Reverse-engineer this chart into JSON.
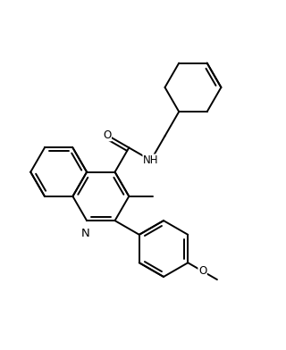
{
  "bg_color": "#ffffff",
  "line_color": "#000000",
  "line_width": 1.4,
  "font_size": 8.5,
  "figsize": [
    3.2,
    3.92
  ],
  "dpi": 100,
  "xlim": [
    0,
    10
  ],
  "ylim": [
    0,
    12.25
  ]
}
